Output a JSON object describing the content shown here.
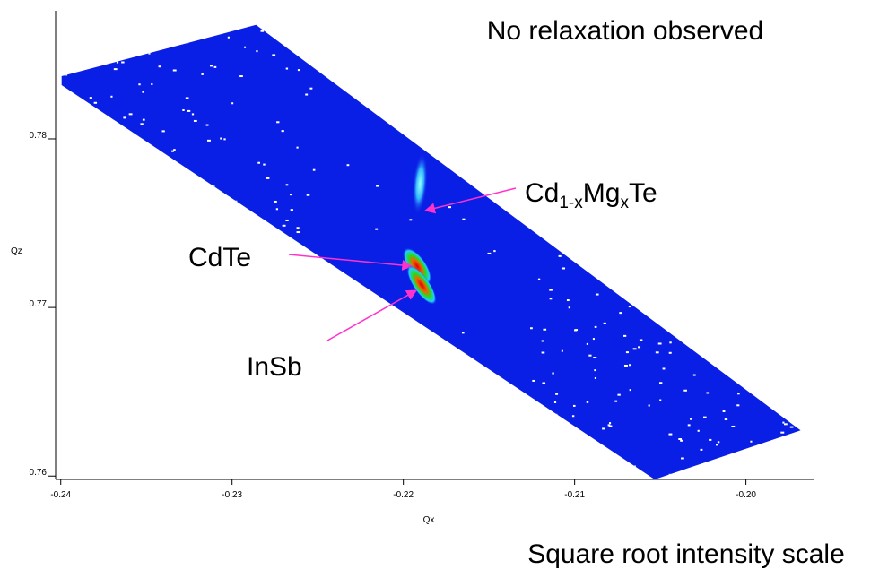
{
  "chart_data": {
    "type": "map",
    "title": "No relaxation observed",
    "subtitle": "Square root intensity scale",
    "x_label": "Qx",
    "y_label": "Qz",
    "xlim": [
      -0.2403,
      -0.196
    ],
    "ylim": [
      0.7598,
      0.7876
    ],
    "xticks": [
      -0.24,
      -0.23,
      -0.22,
      -0.21,
      {
        "value": -0.2,
        "label": "-0.20"
      }
    ],
    "yticks": [
      0.76,
      0.77,
      0.78
    ],
    "region": {
      "qx": [
        -0.23995,
        -0.2286,
        -0.19681,
        -0.20533,
        -0.23995
      ],
      "qz": [
        0.78372,
        0.78676,
        0.76271,
        0.7598,
        0.78319
      ]
    },
    "color": "#0a1fe6",
    "peaks": [
      {
        "label": [
          {
            "text": "Cd"
          },
          {
            "text": "1-x",
            "sub": true
          },
          {
            "text": "Mg"
          },
          {
            "text": "x",
            "sub": true
          },
          {
            "text": "Te"
          }
        ],
        "qx": -0.21903,
        "qz": 0.77734
      },
      {
        "label": [
          {
            "text": "CdTe"
          }
        ],
        "qx": -0.21919,
        "qz": 0.77245
      },
      {
        "label": [
          {
            "text": "InSb"
          }
        ],
        "qx": -0.21893,
        "qz": 0.77133
      }
    ]
  }
}
